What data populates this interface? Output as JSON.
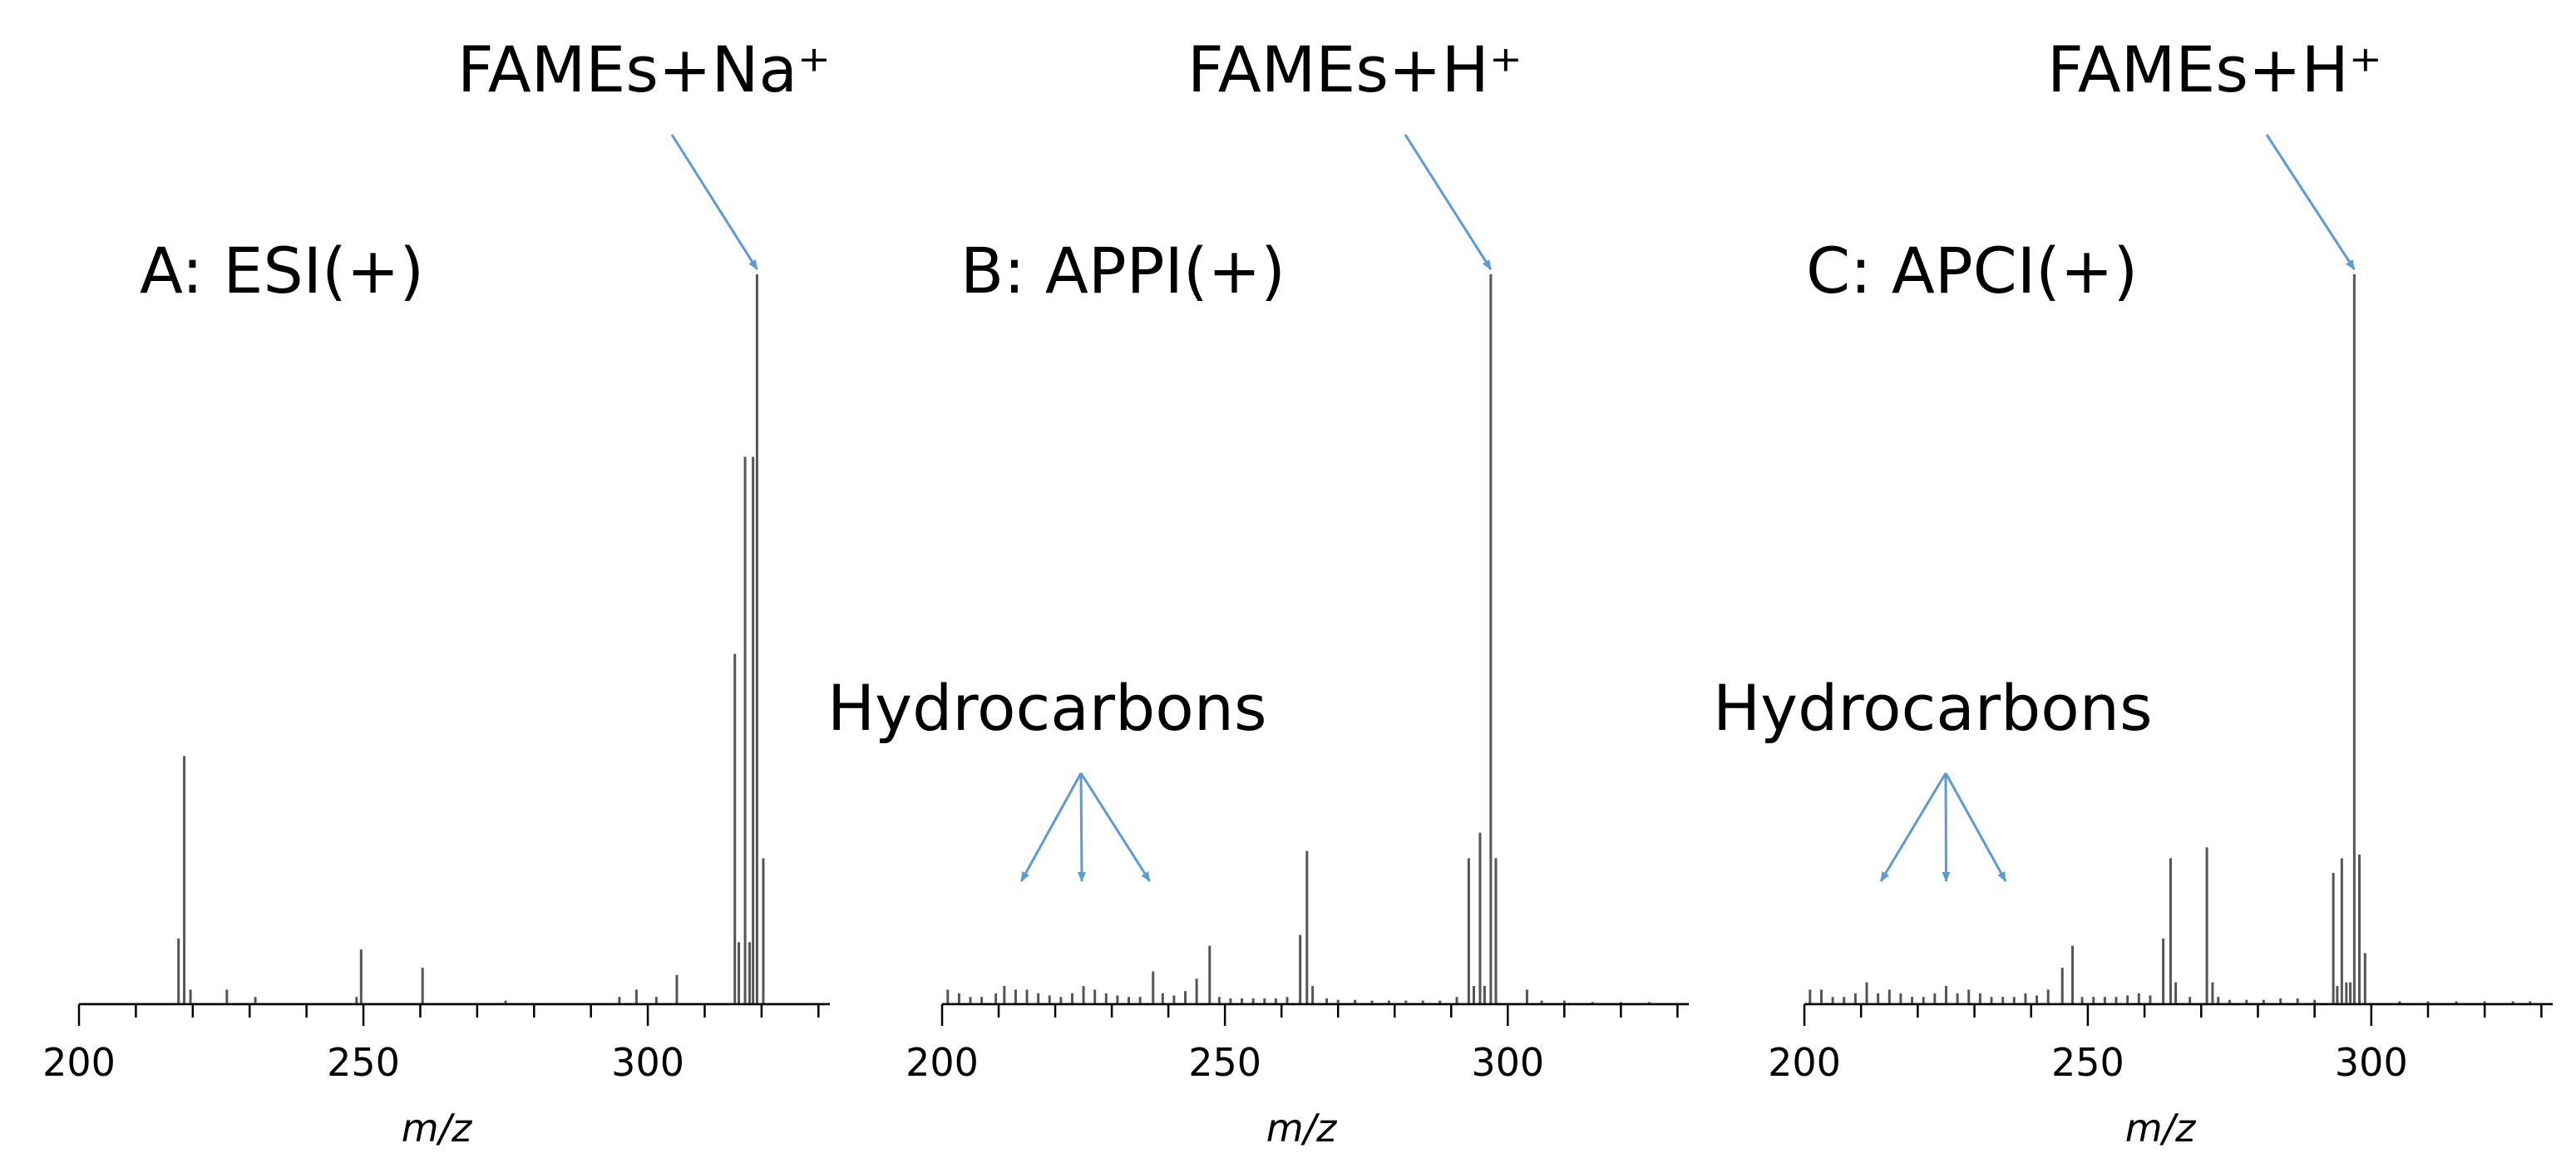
{
  "figure": {
    "annotation_color": "#5b9bd5",
    "stick_color": "#555555",
    "axis_color": "#000000"
  },
  "chart_data": [
    {
      "type": "bar",
      "subtype": "mass-spectrum",
      "title": "A: ESI(+)",
      "xlabel": "m/z",
      "ylabel": "",
      "xlim": [
        200,
        332
      ],
      "ylim": [
        0,
        100
      ],
      "x_ticks": [
        200,
        250,
        300
      ],
      "x_tick_labels": [
        "200",
        "250",
        "300"
      ],
      "peak_annotation": {
        "label": "FAMEs+Na⁺",
        "x": 319.2,
        "y": 100
      },
      "hydrocarbon_annotation": null,
      "peaks": [
        {
          "x": 217.5,
          "y": 9
        },
        {
          "x": 218.5,
          "y": 34
        },
        {
          "x": 219.6,
          "y": 2
        },
        {
          "x": 226,
          "y": 2
        },
        {
          "x": 231,
          "y": 1
        },
        {
          "x": 248.8,
          "y": 1
        },
        {
          "x": 249.6,
          "y": 7.5
        },
        {
          "x": 260.4,
          "y": 5
        },
        {
          "x": 275,
          "y": 0.5
        },
        {
          "x": 295,
          "y": 1
        },
        {
          "x": 298,
          "y": 2
        },
        {
          "x": 301.5,
          "y": 1
        },
        {
          "x": 305.1,
          "y": 4
        },
        {
          "x": 315.3,
          "y": 48
        },
        {
          "x": 316,
          "y": 8.5
        },
        {
          "x": 317.1,
          "y": 75
        },
        {
          "x": 317.9,
          "y": 8.5
        },
        {
          "x": 318.5,
          "y": 75
        },
        {
          "x": 319.2,
          "y": 100
        },
        {
          "x": 320.3,
          "y": 20
        }
      ]
    },
    {
      "type": "bar",
      "subtype": "mass-spectrum",
      "title": "B: APPI(+)",
      "xlabel": "m/z",
      "ylabel": "",
      "xlim": [
        200,
        332
      ],
      "ylim": [
        0,
        100
      ],
      "x_ticks": [
        200,
        250,
        300
      ],
      "x_tick_labels": [
        "200",
        "250",
        "300"
      ],
      "peak_annotation": {
        "label": "FAMEs+H⁺",
        "x": 297,
        "y": 100
      },
      "hydrocarbon_annotation": {
        "label": "Hydrocarbons",
        "arrow_targets_mz": [
          214,
          224.7,
          236.7
        ]
      },
      "peaks": [
        {
          "x": 201,
          "y": 2
        },
        {
          "x": 203,
          "y": 1.5
        },
        {
          "x": 205,
          "y": 1
        },
        {
          "x": 207,
          "y": 1
        },
        {
          "x": 209.5,
          "y": 1.5
        },
        {
          "x": 211,
          "y": 2.5
        },
        {
          "x": 213,
          "y": 2
        },
        {
          "x": 215,
          "y": 2
        },
        {
          "x": 217,
          "y": 1.5
        },
        {
          "x": 219,
          "y": 1.2
        },
        {
          "x": 221,
          "y": 1
        },
        {
          "x": 223,
          "y": 1.5
        },
        {
          "x": 225,
          "y": 2.5
        },
        {
          "x": 227,
          "y": 2
        },
        {
          "x": 229,
          "y": 1.5
        },
        {
          "x": 231,
          "y": 1.2
        },
        {
          "x": 233,
          "y": 1
        },
        {
          "x": 235,
          "y": 1
        },
        {
          "x": 237.3,
          "y": 4.5
        },
        {
          "x": 239,
          "y": 1.5
        },
        {
          "x": 241,
          "y": 1.2
        },
        {
          "x": 243,
          "y": 1.8
        },
        {
          "x": 245,
          "y": 3.5
        },
        {
          "x": 247.3,
          "y": 8
        },
        {
          "x": 249,
          "y": 1
        },
        {
          "x": 251,
          "y": 0.8
        },
        {
          "x": 253,
          "y": 0.8
        },
        {
          "x": 255,
          "y": 0.8
        },
        {
          "x": 257,
          "y": 0.8
        },
        {
          "x": 259,
          "y": 0.8
        },
        {
          "x": 261,
          "y": 1
        },
        {
          "x": 263.3,
          "y": 9.5
        },
        {
          "x": 264.5,
          "y": 21
        },
        {
          "x": 265.5,
          "y": 2.5
        },
        {
          "x": 268,
          "y": 0.8
        },
        {
          "x": 270,
          "y": 0.6
        },
        {
          "x": 273,
          "y": 0.6
        },
        {
          "x": 276,
          "y": 0.5
        },
        {
          "x": 279,
          "y": 0.5
        },
        {
          "x": 282,
          "y": 0.5
        },
        {
          "x": 285,
          "y": 0.5
        },
        {
          "x": 288,
          "y": 0.5
        },
        {
          "x": 291,
          "y": 1
        },
        {
          "x": 293.1,
          "y": 20
        },
        {
          "x": 294,
          "y": 2.5
        },
        {
          "x": 295.1,
          "y": 23.5
        },
        {
          "x": 295.9,
          "y": 2.5
        },
        {
          "x": 297,
          "y": 100
        },
        {
          "x": 297.9,
          "y": 20
        },
        {
          "x": 303.4,
          "y": 2
        },
        {
          "x": 306,
          "y": 0.5
        },
        {
          "x": 310,
          "y": 0.5
        },
        {
          "x": 315,
          "y": 0.3
        },
        {
          "x": 320,
          "y": 0.3
        },
        {
          "x": 325,
          "y": 0.3
        }
      ]
    },
    {
      "type": "bar",
      "subtype": "mass-spectrum",
      "title": "C: APCI(+)",
      "xlabel": "m/z",
      "ylabel": "",
      "xlim": [
        200,
        332
      ],
      "ylim": [
        0,
        100
      ],
      "x_ticks": [
        200,
        250,
        300
      ],
      "x_tick_labels": [
        "200",
        "250",
        "300"
      ],
      "peak_annotation": {
        "label": "FAMEs+H⁺",
        "x": 297,
        "y": 100
      },
      "hydrocarbon_annotation": {
        "label": "Hydrocarbons",
        "arrow_targets_mz": [
          213.5,
          225,
          235.5
        ]
      },
      "peaks": [
        {
          "x": 201,
          "y": 2
        },
        {
          "x": 203,
          "y": 2
        },
        {
          "x": 205,
          "y": 1
        },
        {
          "x": 207,
          "y": 1
        },
        {
          "x": 209,
          "y": 1.5
        },
        {
          "x": 211,
          "y": 3
        },
        {
          "x": 213,
          "y": 1.5
        },
        {
          "x": 215,
          "y": 2
        },
        {
          "x": 217,
          "y": 1.5
        },
        {
          "x": 219,
          "y": 1
        },
        {
          "x": 221,
          "y": 1
        },
        {
          "x": 223,
          "y": 1.5
        },
        {
          "x": 225,
          "y": 2.5
        },
        {
          "x": 227,
          "y": 1.5
        },
        {
          "x": 229,
          "y": 2
        },
        {
          "x": 231,
          "y": 1.5
        },
        {
          "x": 233,
          "y": 1
        },
        {
          "x": 235,
          "y": 1
        },
        {
          "x": 237,
          "y": 1
        },
        {
          "x": 239,
          "y": 1.5
        },
        {
          "x": 241,
          "y": 1.2
        },
        {
          "x": 243,
          "y": 2
        },
        {
          "x": 245.5,
          "y": 5
        },
        {
          "x": 247.3,
          "y": 8
        },
        {
          "x": 249,
          "y": 1
        },
        {
          "x": 251,
          "y": 1
        },
        {
          "x": 253,
          "y": 1
        },
        {
          "x": 255,
          "y": 1
        },
        {
          "x": 257,
          "y": 1.2
        },
        {
          "x": 259,
          "y": 1.5
        },
        {
          "x": 261,
          "y": 1.2
        },
        {
          "x": 263.3,
          "y": 9
        },
        {
          "x": 264.6,
          "y": 20
        },
        {
          "x": 265.5,
          "y": 3
        },
        {
          "x": 268,
          "y": 1
        },
        {
          "x": 271,
          "y": 21.5
        },
        {
          "x": 272,
          "y": 3
        },
        {
          "x": 273,
          "y": 1
        },
        {
          "x": 275,
          "y": 0.6
        },
        {
          "x": 278,
          "y": 0.6
        },
        {
          "x": 281,
          "y": 0.6
        },
        {
          "x": 284,
          "y": 0.8
        },
        {
          "x": 287,
          "y": 0.8
        },
        {
          "x": 290,
          "y": 0.6
        },
        {
          "x": 293.3,
          "y": 18
        },
        {
          "x": 294,
          "y": 2.5
        },
        {
          "x": 294.8,
          "y": 20
        },
        {
          "x": 295.6,
          "y": 3
        },
        {
          "x": 296.3,
          "y": 3
        },
        {
          "x": 297,
          "y": 100
        },
        {
          "x": 297.9,
          "y": 20.5
        },
        {
          "x": 298.9,
          "y": 7
        },
        {
          "x": 305,
          "y": 0.4
        },
        {
          "x": 310,
          "y": 0.4
        },
        {
          "x": 315,
          "y": 0.4
        },
        {
          "x": 320,
          "y": 0.4
        },
        {
          "x": 325,
          "y": 0.4
        },
        {
          "x": 328,
          "y": 0.4
        }
      ]
    }
  ]
}
